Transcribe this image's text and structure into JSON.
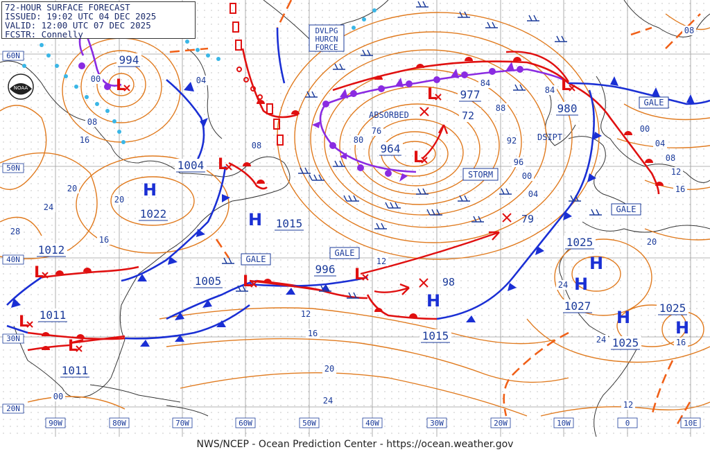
{
  "header": {
    "title": "72-HOUR SURFACE FORECAST",
    "issued": "ISSUED: 19:02 UTC 04 DEC 2025",
    "valid": "VALID: 12:00 UTC 07 DEC 2025",
    "forecaster": "FCSTR: Connelly"
  },
  "footer": "NWS/NCEP - Ocean Prediction Center - https://ocean.weather.gov",
  "logo_text": "NOAA",
  "lat_labels": [
    "60N",
    "50N",
    "40N",
    "30N",
    "20N"
  ],
  "lon_labels": [
    "90W",
    "80W",
    "70W",
    "60W",
    "50W",
    "40W",
    "30W",
    "20W",
    "10W",
    "0",
    "10E"
  ],
  "lows": [
    {
      "pressure": "994"
    },
    {
      "pressure": "1004"
    },
    {
      "pressure": "964"
    },
    {
      "pressure": "977"
    },
    {
      "pressure": "980"
    },
    {
      "pressure": "1012"
    },
    {
      "pressure": "1011"
    },
    {
      "pressure": "1005"
    },
    {
      "pressure": "996"
    },
    {
      "pressure": "1011"
    }
  ],
  "highs": [
    {
      "letter": "H",
      "pressure": "1022"
    },
    {
      "letter": "H",
      "pressure": "1015"
    },
    {
      "letter": "H",
      "pressure": "1015"
    },
    {
      "letter": "H",
      "pressure": "1025"
    },
    {
      "letter": "H",
      "pressure": "1027"
    },
    {
      "letter": "H",
      "pressure": "1025"
    },
    {
      "letter": "H",
      "pressure": "1025"
    }
  ],
  "low_letter": "L",
  "warnings": {
    "dvlpg": [
      "DVLPG",
      "HURCN",
      "FORCE"
    ],
    "storm": "STORM",
    "gale_1": "GALE",
    "gale_2": "GALE",
    "gale_3": "GALE",
    "gale_4": "GALE"
  },
  "annotations": {
    "absorbed": "ABSORBED",
    "dsipt": "DSIPT",
    "pos_72": "72",
    "pos_79": "79",
    "pos_98": "98"
  },
  "isobar_labels": [
    "00",
    "08",
    "16",
    "04",
    "08",
    "20",
    "24",
    "28",
    "20",
    "16",
    "80",
    "76",
    "84",
    "88",
    "92",
    "96",
    "00",
    "04",
    "84",
    "00",
    "04",
    "08",
    "12",
    "16",
    "08",
    "20",
    "12",
    "16",
    "20",
    "24",
    "24",
    "24",
    "16",
    "12",
    "00",
    "12"
  ],
  "colors": {
    "isobar": "#e07a1e",
    "cold_front": "#1a2fd4",
    "warm_front": "#e01010",
    "occluded": "#8a2be2",
    "trough": "#f06018",
    "label": "#1a3a9a",
    "coast": "#333333",
    "grid": "#9a9a9a"
  }
}
